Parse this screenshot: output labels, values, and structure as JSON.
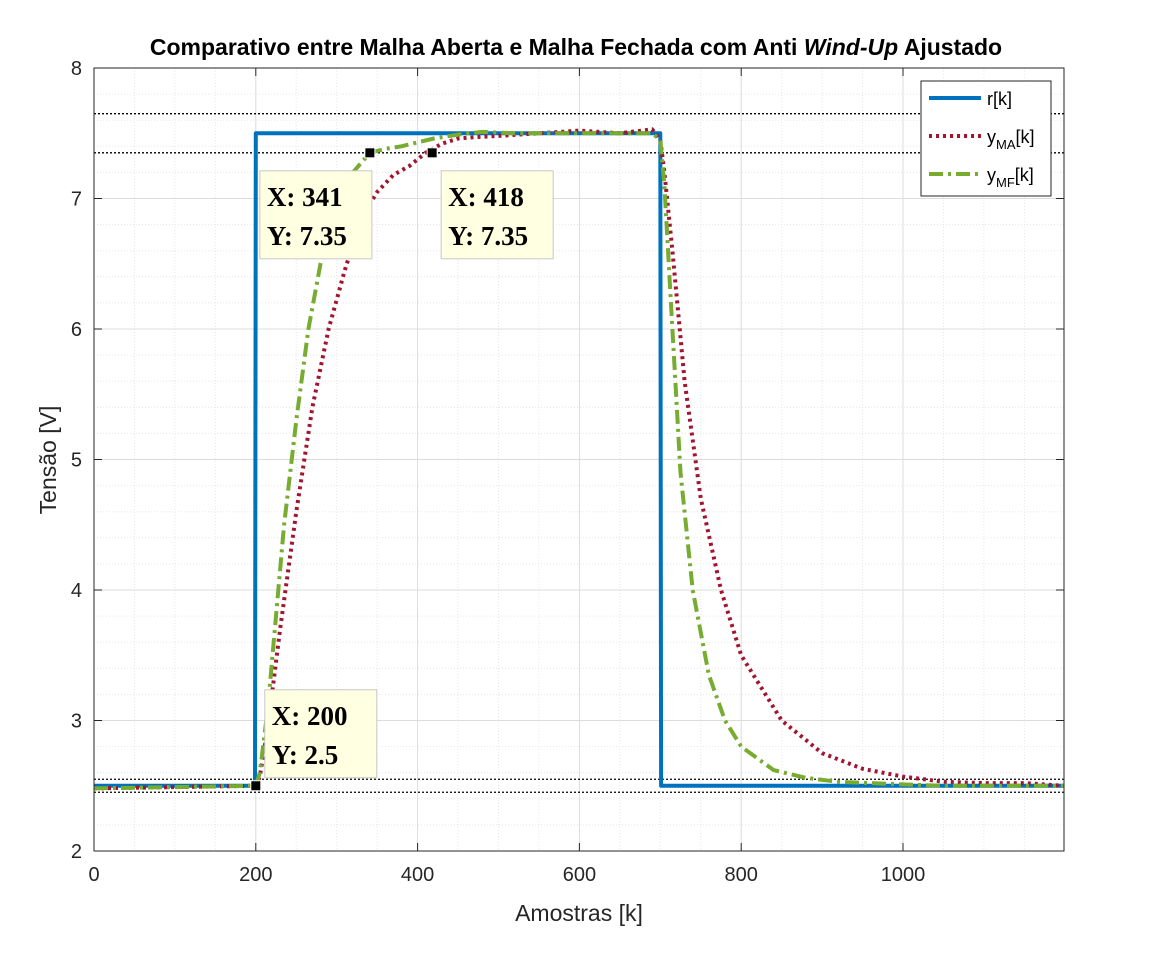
{
  "chart_data": {
    "type": "line",
    "title_parts": [
      "Comparativo entre Malha Aberta e Malha Fechada com Anti ",
      "Wind-Up",
      " Ajustado"
    ],
    "xlabel": "Amostras [k]",
    "ylabel": "Tensão [V]",
    "xlim": [
      0,
      1199
    ],
    "ylim": [
      2,
      8
    ],
    "xticks": [
      0,
      200,
      400,
      600,
      800,
      1000
    ],
    "yticks": [
      2,
      3,
      4,
      5,
      6,
      7,
      8
    ],
    "grid": true,
    "minor_grid": true,
    "legend_position": "top-right",
    "colors": {
      "reference": "#0072BD",
      "open_loop": "#A2142F",
      "closed_loop": "#77AC30",
      "ref_lines": "#000000",
      "datatip_bg": "#FFFFE1"
    },
    "series": [
      {
        "key": "r",
        "label": "r[k]",
        "style": "solid",
        "x": [
          0,
          199,
          200,
          700,
          701,
          1199
        ],
        "y": [
          2.5,
          2.5,
          7.5,
          7.5,
          2.5,
          2.5
        ]
      },
      {
        "key": "yMA",
        "label_base": "y",
        "label_sub": "MA",
        "label_suffix": "[k]",
        "style": "dotted",
        "x": [
          0,
          200,
          205,
          215,
          230,
          250,
          270,
          290,
          310,
          330,
          350,
          370,
          390,
          410,
          430,
          450,
          470,
          500,
          550,
          600,
          650,
          690,
          700,
          705,
          715,
          730,
          750,
          775,
          800,
          850,
          900,
          950,
          1000,
          1050,
          1100,
          1150,
          1199
        ],
        "y": [
          2.48,
          2.5,
          2.57,
          2.95,
          3.7,
          4.6,
          5.4,
          6.0,
          6.45,
          6.85,
          7.05,
          7.18,
          7.25,
          7.35,
          7.42,
          7.46,
          7.47,
          7.48,
          7.5,
          7.52,
          7.5,
          7.53,
          7.45,
          7.2,
          6.6,
          5.6,
          4.7,
          4.0,
          3.5,
          3.0,
          2.75,
          2.63,
          2.57,
          2.53,
          2.52,
          2.52,
          2.5
        ]
      },
      {
        "key": "yMF",
        "label_base": "y",
        "label_sub": "MF",
        "label_suffix": "[k]",
        "style": "dashdot",
        "x": [
          0,
          200,
          205,
          215,
          225,
          235,
          250,
          265,
          280,
          300,
          320,
          341,
          360,
          380,
          400,
          420,
          450,
          480,
          520,
          560,
          600,
          650,
          690,
          700,
          705,
          715,
          725,
          740,
          760,
          780,
          800,
          840,
          880,
          920,
          960,
          1000,
          1050,
          1100,
          1150,
          1199
        ],
        "y": [
          2.48,
          2.5,
          2.6,
          3.1,
          3.8,
          4.5,
          5.3,
          6.0,
          6.5,
          6.95,
          7.2,
          7.35,
          7.38,
          7.4,
          7.43,
          7.46,
          7.49,
          7.51,
          7.5,
          7.5,
          7.5,
          7.5,
          7.5,
          7.45,
          7.1,
          6.0,
          4.9,
          4.0,
          3.35,
          3.0,
          2.8,
          2.62,
          2.56,
          2.53,
          2.52,
          2.51,
          2.5,
          2.5,
          2.5,
          2.5
        ]
      }
    ],
    "reference_lines": [
      7.65,
      7.35,
      2.55,
      2.45
    ],
    "datatips": [
      {
        "x": 341,
        "y": 7.35,
        "x_text": "X: 341",
        "y_text": "Y: 7.35",
        "box_side": "below-left"
      },
      {
        "x": 418,
        "y": 7.35,
        "x_text": "X: 418",
        "y_text": "Y: 7.35",
        "box_side": "below-right"
      },
      {
        "x": 200,
        "y": 2.5,
        "x_text": "X: 200",
        "y_text": "Y: 2.5",
        "box_side": "above-right"
      }
    ]
  }
}
